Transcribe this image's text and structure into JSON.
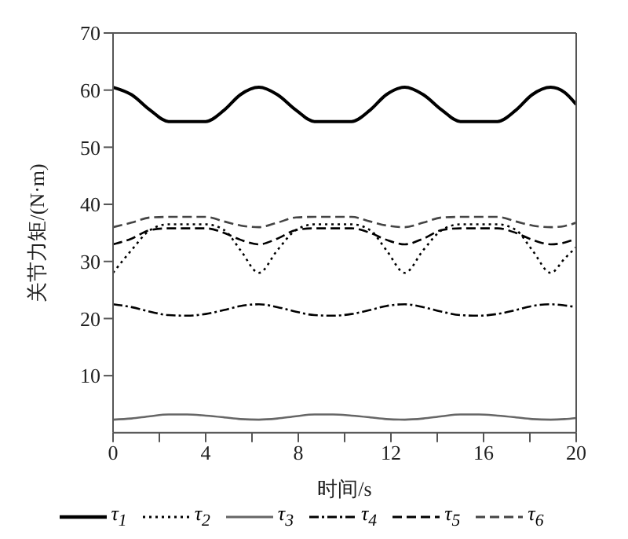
{
  "chart_data": {
    "type": "line",
    "xlabel": "时间/s",
    "ylabel": "关节力矩/(N·m)",
    "x": [
      0,
      0.8,
      1.6,
      2.4,
      3.2,
      4.0,
      4.8,
      5.5,
      6.3,
      7.1,
      7.9,
      8.7,
      9.5,
      10.3,
      11.1,
      11.8,
      12.6,
      13.4,
      14.2,
      15.0,
      15.8,
      16.6,
      17.4,
      18.1,
      18.9,
      19.5,
      20
    ],
    "series": [
      {
        "name": "τ$_{1}$",
        "color": "#000000",
        "line_style": "solid",
        "values": [
          60.5,
          59.2,
          56.5,
          54.5,
          54.5,
          54.5,
          56.5,
          59.2,
          60.5,
          59.2,
          56.5,
          54.5,
          54.5,
          54.5,
          56.5,
          59.2,
          60.5,
          59.2,
          56.5,
          54.5,
          54.5,
          54.5,
          56.5,
          59.2,
          60.5,
          59.6,
          57.5
        ]
      },
      {
        "name": "τ$_{2}$",
        "color": "#000000",
        "line_style": "dotted",
        "values": [
          28,
          32,
          35.5,
          36.5,
          36.5,
          36.5,
          35.5,
          32,
          28,
          32,
          35.5,
          36.5,
          36.5,
          36.5,
          35.5,
          32,
          28,
          32,
          35.5,
          36.5,
          36.5,
          36.5,
          35.5,
          32,
          28,
          30.5,
          32.5
        ]
      },
      {
        "name": "τ$_{3}$",
        "color": "#666666",
        "line_style": "solid",
        "values": [
          2.3,
          2.5,
          2.9,
          3.2,
          3.2,
          3.0,
          2.7,
          2.4,
          2.3,
          2.5,
          2.9,
          3.2,
          3.2,
          3.0,
          2.7,
          2.4,
          2.3,
          2.5,
          2.9,
          3.2,
          3.2,
          3.0,
          2.7,
          2.4,
          2.3,
          2.4,
          2.6
        ]
      },
      {
        "name": "τ$_{4}$",
        "color": "#000000",
        "line_style": "dashdot",
        "values": [
          22.5,
          22,
          21.2,
          20.6,
          20.5,
          20.8,
          21.5,
          22.2,
          22.5,
          22,
          21.2,
          20.6,
          20.5,
          20.8,
          21.5,
          22.2,
          22.5,
          22,
          21.2,
          20.6,
          20.5,
          20.8,
          21.5,
          22.2,
          22.5,
          22.3,
          22
        ]
      },
      {
        "name": "τ$_{5}$",
        "color": "#000000",
        "line_style": "dashed",
        "values": [
          33,
          34,
          35.5,
          35.8,
          35.8,
          35.8,
          35,
          33.8,
          33,
          34,
          35.5,
          35.8,
          35.8,
          35.8,
          35,
          33.8,
          33,
          34,
          35.5,
          35.8,
          35.8,
          35.8,
          35,
          33.8,
          33,
          33.3,
          34
        ]
      },
      {
        "name": "τ$_{6}$",
        "color": "#444444",
        "line_style": "dashed",
        "values": [
          36,
          36.8,
          37.7,
          37.8,
          37.8,
          37.8,
          37,
          36.3,
          36,
          36.8,
          37.7,
          37.8,
          37.8,
          37.8,
          37,
          36.3,
          36,
          36.8,
          37.7,
          37.8,
          37.8,
          37.8,
          37,
          36.3,
          36,
          36.2,
          36.8
        ]
      }
    ],
    "xlim": [
      0,
      20
    ],
    "xticks": [
      0,
      {
        "value": 2,
        "label": null
      },
      4,
      {
        "value": 6,
        "label": null
      },
      8,
      {
        "value": 10,
        "label": null
      },
      12,
      {
        "value": 14,
        "label": null
      },
      16,
      {
        "value": 18,
        "label": null
      },
      20
    ],
    "ylim": [
      0,
      70
    ],
    "yticks": [
      10,
      20,
      30,
      40,
      50,
      60,
      70
    ],
    "legend": "bottom",
    "marker": "none"
  }
}
